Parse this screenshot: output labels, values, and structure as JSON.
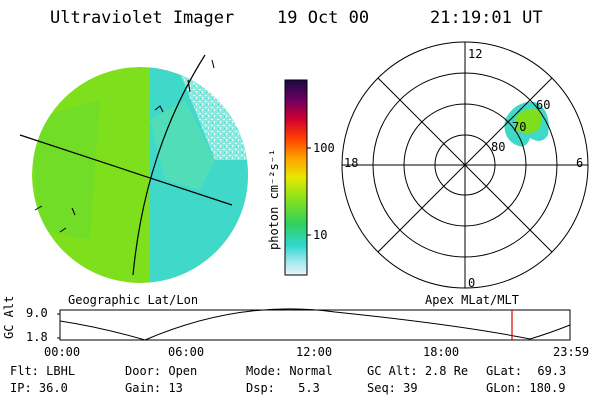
{
  "header": {
    "instrument": "Ultraviolet Imager",
    "date": "19 Oct 00",
    "time": "21:19:01 UT"
  },
  "colorbar": {
    "unit_label": "photon cm⁻²s⁻¹",
    "ticks": [
      "100",
      "10"
    ]
  },
  "polar_plot": {
    "mlt_labels": {
      "top": "12",
      "left": "18",
      "right": "6",
      "bottom": "0"
    },
    "mlat_labels": [
      "80",
      "70",
      "60"
    ]
  },
  "panel_labels": {
    "left": "Geographic Lat/Lon",
    "right": "Apex MLat/MLT"
  },
  "altitude_strip": {
    "axis_label": "GC Alt",
    "y_ticks": [
      "9.0",
      "1.8"
    ],
    "x_ticks": [
      "00:00",
      "06:00",
      "12:00",
      "18:00",
      "23:59"
    ]
  },
  "info": {
    "col1": [
      {
        "label": "Flt:",
        "value": "LBHL"
      },
      {
        "label": "IP:",
        "value": "36.0"
      }
    ],
    "col2": [
      {
        "label": "Door:",
        "value": "Open"
      },
      {
        "label": "Gain:",
        "value": "13"
      }
    ],
    "col3": [
      {
        "label": "Mode:",
        "value": "Normal"
      },
      {
        "label": "Dsp:",
        "value": "5.3"
      }
    ],
    "col4": [
      {
        "label": "GC Alt:",
        "value": "2.8 Re"
      },
      {
        "label": "Seq:",
        "value": "39"
      }
    ],
    "col5": [
      {
        "label": "GLat:",
        "value": "69.3"
      },
      {
        "label": "GLon:",
        "value": "180.9"
      }
    ]
  },
  "colors": {
    "image_green": "#7ee01c",
    "image_cyan": "#3fe0d0",
    "marker_red": "#e00000"
  }
}
